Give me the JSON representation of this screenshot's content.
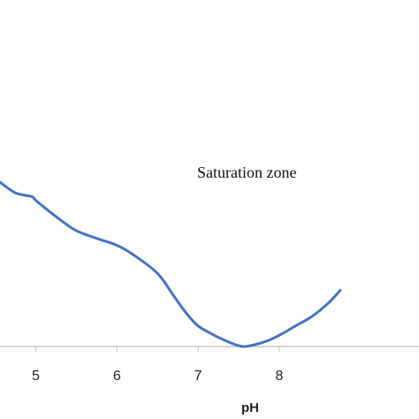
{
  "chart_data": {
    "type": "line",
    "title": "",
    "xlabel": "pH",
    "ylabel": "",
    "xlim": [
      4.56,
      9.72
    ],
    "ylim": [
      0,
      1
    ],
    "x_ticks": [
      5,
      6,
      7,
      8
    ],
    "x_tick_labels": [
      "5",
      "6",
      "7",
      "8"
    ],
    "grid": false,
    "legend": "none",
    "annotations": [
      {
        "text": "Saturation zone",
        "x": 7.6,
        "y": 0.9
      }
    ],
    "series": [
      {
        "color": "#4472c4",
        "x": [
          4.55,
          4.75,
          4.95,
          5.0,
          5.2,
          5.45,
          5.6,
          5.8,
          6.0,
          6.2,
          6.5,
          6.7,
          6.85,
          7.0,
          7.2,
          7.4,
          7.55,
          7.7,
          7.85,
          8.0,
          8.2,
          8.4,
          8.6,
          8.75
        ],
        "y": [
          0.88,
          0.82,
          0.8,
          0.78,
          0.71,
          0.63,
          0.6,
          0.57,
          0.54,
          0.49,
          0.39,
          0.27,
          0.18,
          0.11,
          0.06,
          0.02,
          0.0,
          0.01,
          0.03,
          0.06,
          0.11,
          0.16,
          0.23,
          0.3
        ]
      }
    ]
  }
}
